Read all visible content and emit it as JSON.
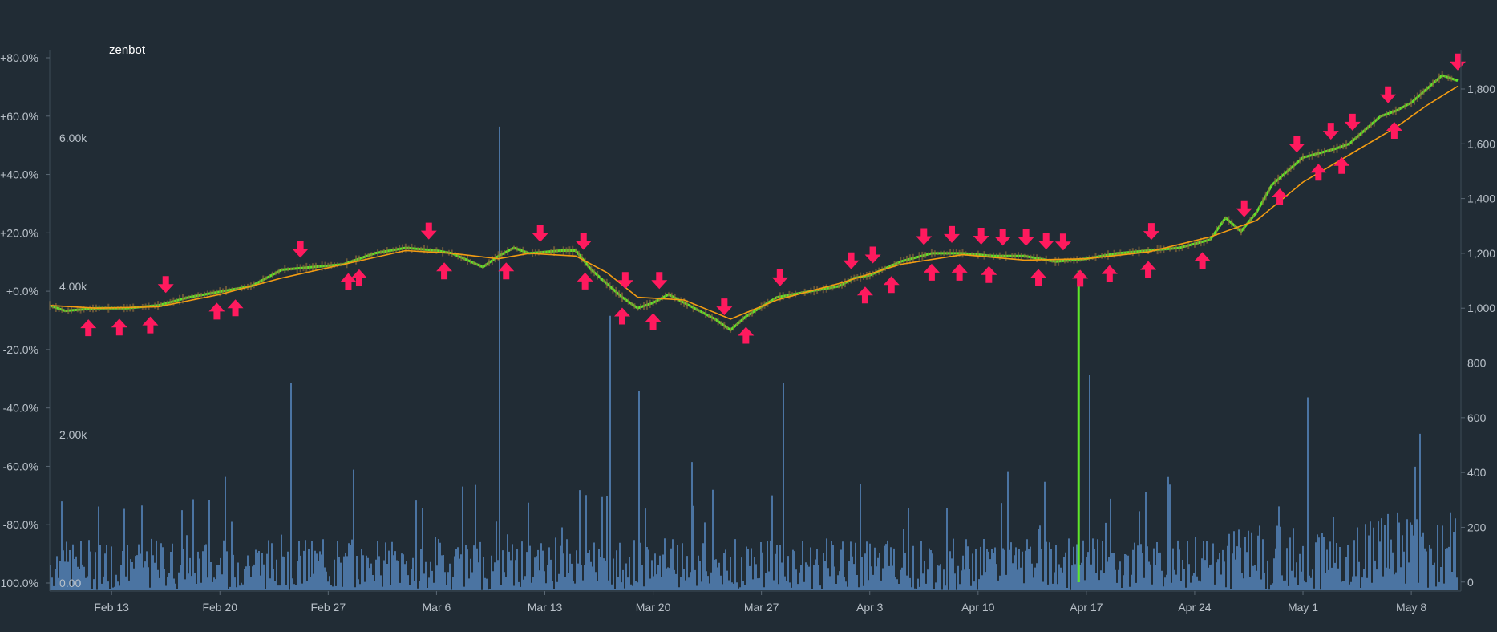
{
  "chart_data": {
    "type": "line",
    "title": "zenbot",
    "xlabel": "",
    "ylabel": "",
    "x_ticks": [
      "Feb 13",
      "Feb 20",
      "Feb 27",
      "Mar 6",
      "Mar 13",
      "Mar 20",
      "Mar 27",
      "Apr 3",
      "Apr 10",
      "Apr 17",
      "Apr 24",
      "May 1",
      "May 8"
    ],
    "y_left_ticks": [
      "+80.0%",
      "+60.0%",
      "+40.0%",
      "+20.0%",
      "+0.0%",
      "-20.0%",
      "-40.0%",
      "-60.0%",
      "-80.0%",
      "-100.0%"
    ],
    "y_right_ticks": [
      "1,800",
      "1,600",
      "1,400",
      "1,200",
      "1,000",
      "800",
      "600",
      "400",
      "200",
      "0"
    ],
    "volume_ticks": [
      "6.00k",
      "4.00k",
      "2.00k",
      "0.00"
    ],
    "x_day_range": [
      9,
      100
    ],
    "y_right_range": [
      -30,
      1920
    ],
    "volume_range": [
      0,
      7200
    ],
    "grid": false,
    "colors": {
      "background": "#212c35",
      "price_up": "#5ee62a",
      "price_down": "#8a6a3a",
      "moving_average": "#f39c12",
      "volume": "#5b8ec9",
      "signal": "#ff1a5e",
      "marker_line": "#5ee62a"
    },
    "series": [
      {
        "name": "Price",
        "x_days": [
          9,
          10,
          12,
          14,
          16,
          18,
          20,
          22,
          24,
          26,
          28,
          30,
          32,
          34,
          35,
          37,
          38,
          39,
          40,
          42,
          43,
          44,
          46,
          47,
          48,
          49,
          50,
          52,
          53,
          54,
          56,
          58,
          60,
          61,
          62,
          64,
          66,
          68,
          70,
          72,
          74,
          76,
          78,
          80,
          82,
          84,
          85,
          86,
          87,
          88,
          90,
          92,
          93,
          94,
          95,
          96,
          97,
          98,
          99,
          100
        ],
        "values": [
          1010,
          990,
          1000,
          1000,
          1010,
          1040,
          1060,
          1080,
          1140,
          1150,
          1160,
          1200,
          1220,
          1210,
          1200,
          1150,
          1190,
          1220,
          1200,
          1210,
          1210,
          1140,
          1040,
          1000,
          1020,
          1050,
          1020,
          960,
          920,
          970,
          1040,
          1060,
          1080,
          1110,
          1120,
          1170,
          1200,
          1200,
          1190,
          1190,
          1170,
          1180,
          1200,
          1210,
          1220,
          1250,
          1330,
          1280,
          1350,
          1450,
          1550,
          1580,
          1600,
          1650,
          1700,
          1720,
          1750,
          1800,
          1850,
          1830
        ]
      },
      {
        "name": "Moving average",
        "x_days": [
          9,
          12,
          16,
          20,
          24,
          28,
          32,
          35,
          38,
          40,
          43,
          45,
          47,
          50,
          53,
          56,
          60,
          64,
          68,
          72,
          76,
          80,
          84,
          87,
          90,
          93,
          96,
          98,
          100
        ],
        "values": [
          1010,
          1000,
          1005,
          1050,
          1110,
          1160,
          1210,
          1200,
          1180,
          1200,
          1190,
          1130,
          1040,
          1030,
          960,
          1030,
          1090,
          1160,
          1195,
          1175,
          1180,
          1205,
          1260,
          1320,
          1460,
          1560,
          1660,
          1740,
          1810
        ]
      }
    ],
    "big_volume_spikes": [
      {
        "day": 9.2,
        "value": 4300
      },
      {
        "day": 24.6,
        "value": 2800
      },
      {
        "day": 37.8,
        "value": 3500
      },
      {
        "day": 38.1,
        "value": 6250
      },
      {
        "day": 45.2,
        "value": 3700
      },
      {
        "day": 56.4,
        "value": 2800
      },
      {
        "day": 76.2,
        "value": 2900
      },
      {
        "day": 90.3,
        "value": 2600
      }
    ],
    "tall_signal_line_day": 75.5,
    "sell_signal_days": [
      16.5,
      25.2,
      33.5,
      40.7,
      43.5,
      46.2,
      48.4,
      52.6,
      56.2,
      60.8,
      62.2,
      65.5,
      67.3,
      69.2,
      70.6,
      72.1,
      73.4,
      74.5,
      80.2,
      86.2,
      89.6,
      91.8,
      93.2,
      95.5,
      100
    ],
    "buy_signal_days": [
      11.5,
      13.5,
      15.5,
      19.8,
      21.0,
      28.3,
      29.0,
      34.5,
      38.5,
      43.6,
      46.0,
      48.0,
      54.0,
      61.7,
      63.4,
      66.0,
      67.8,
      69.7,
      72.9,
      75.6,
      77.5,
      80.0,
      83.5,
      88.5,
      91.0,
      92.5,
      95.9
    ]
  }
}
